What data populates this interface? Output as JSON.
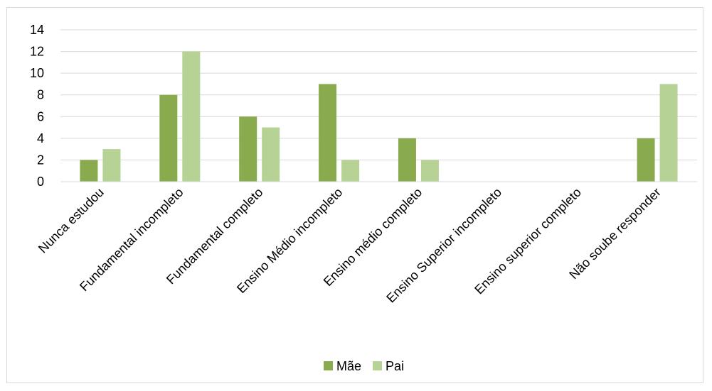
{
  "chart_data": {
    "type": "bar",
    "categories": [
      "Nunca estudou",
      "Fundamental incompleto",
      "Fundamental completo",
      "Ensino Médio incompleto",
      "Ensino médio completo",
      "Ensino Superior incompleto",
      "Ensino superior completo",
      "Não soube responder"
    ],
    "series": [
      {
        "name": "Mãe",
        "color": "#8aaa4e",
        "values": [
          2,
          8,
          6,
          9,
          4,
          0,
          0,
          4
        ]
      },
      {
        "name": "Pai",
        "color": "#b7d295",
        "values": [
          3,
          12,
          5,
          2,
          2,
          0,
          0,
          9
        ]
      }
    ],
    "ylim": [
      0,
      14
    ],
    "yticks": [
      0,
      2,
      4,
      6,
      8,
      10,
      12,
      14
    ],
    "grid": true,
    "legend": "bottom"
  }
}
